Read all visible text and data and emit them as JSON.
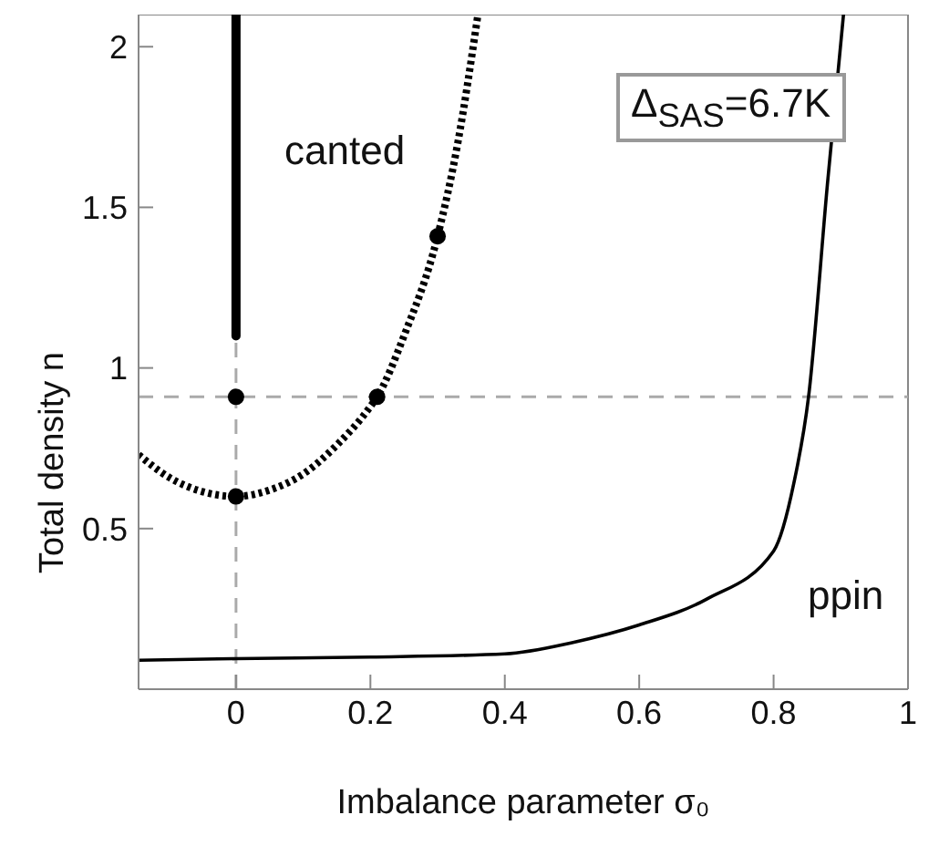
{
  "chart_data": {
    "type": "line",
    "xlabel": "Imbalance parameter σ₀",
    "ylabel": "Total density n",
    "xlim": [
      -0.145,
      1
    ],
    "xticks": [
      0,
      0.2,
      0.4,
      0.6,
      0.8,
      1
    ],
    "ylim": [
      0,
      2.1
    ],
    "yticks": [
      0.5,
      1,
      1.5,
      2
    ],
    "series": [
      {
        "color": "#000000",
        "line_style": "dotted",
        "marker": "none",
        "x": [
          -0.145,
          -0.1,
          -0.05,
          0,
          0.05,
          0.1,
          0.15,
          0.2,
          0.21,
          0.25,
          0.3,
          0.33,
          0.36
        ],
        "values": [
          0.73,
          0.66,
          0.615,
          0.6,
          0.62,
          0.67,
          0.76,
          0.88,
          0.91,
          1.1,
          1.41,
          1.7,
          2.1
        ]
      },
      {
        "color": "#000000",
        "line_style": "solid",
        "marker": "none",
        "x": [
          0,
          0
        ],
        "values": [
          1.1,
          2.1
        ]
      },
      {
        "color": "#000000",
        "line_style": "solid",
        "marker": "none",
        "x": [
          -0.145,
          0,
          0.2,
          0.4,
          0.5,
          0.6,
          0.7,
          0.8,
          0.83,
          0.852,
          0.88,
          0.904
        ],
        "values": [
          0.09,
          0.095,
          0.1,
          0.11,
          0.145,
          0.2,
          0.28,
          0.43,
          0.64,
          0.91,
          1.57,
          2.1
        ]
      },
      {
        "type": "scatter",
        "color": "#000000",
        "marker": "circle",
        "x": [
          0,
          0,
          0.21,
          0.3
        ],
        "values": [
          0.91,
          0.6,
          0.91,
          1.41
        ]
      }
    ],
    "ref_lines": [
      {
        "axis": "y",
        "value": 0.91,
        "color": "#aaaaaa",
        "line_style": "dashed"
      },
      {
        "axis": "x",
        "value": 0,
        "color": "#aaaaaa",
        "line_style": "dashed"
      }
    ],
    "annotations": [
      "canted",
      "ppin",
      "Δ$_{SAS}$=6.7K"
    ]
  }
}
